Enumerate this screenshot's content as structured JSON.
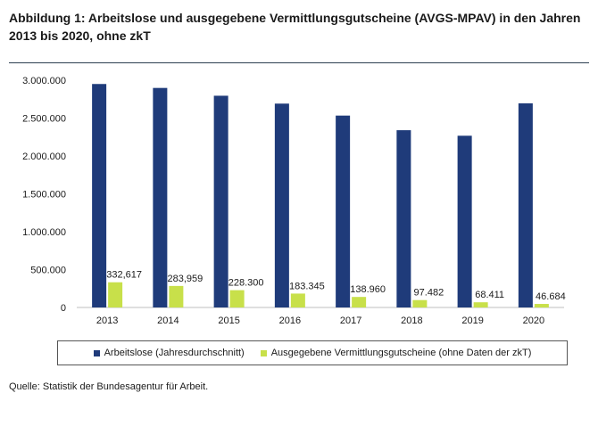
{
  "title": "Abbildung 1: Arbeitslose und ausgegebene Vermittlungsgutscheine (AVGS-MPAV) in den Jahren 2013 bis 2020, ohne zkT",
  "source": "Quelle: Statistik der Bundesagentur für Arbeit.",
  "colors": {
    "series1": "#1f3b7a",
    "series2": "#c8e04a"
  },
  "chart_data": {
    "type": "bar",
    "title": "Abbildung 1: Arbeitslose und ausgegebene Vermittlungsgutscheine (AVGS-MPAV) in den Jahren 2013 bis 2020, ohne zkT",
    "xlabel": "",
    "ylabel": "",
    "categories": [
      "2013",
      "2014",
      "2015",
      "2016",
      "2017",
      "2018",
      "2019",
      "2020"
    ],
    "ylim": [
      0,
      3000000
    ],
    "yticks": [
      0,
      500000,
      1000000,
      1500000,
      2000000,
      2500000,
      3000000
    ],
    "ytick_labels": [
      "0",
      "500.000",
      "1.000.000",
      "1.500.000",
      "2.000.000",
      "2.500.000",
      "3.000.000"
    ],
    "grid": false,
    "legend_position": "bottom",
    "series": [
      {
        "name": "Arbeitslose (Jahresdurchschnitt)",
        "values": [
          2950000,
          2898000,
          2795000,
          2691000,
          2533000,
          2340000,
          2267000,
          2695000
        ],
        "data_labels": []
      },
      {
        "name": "Ausgegebene Vermittlungsgutscheine (ohne Daten der zkT)",
        "values": [
          332617,
          283959,
          228300,
          183345,
          138960,
          97482,
          68411,
          46684
        ],
        "data_labels": [
          "332,617",
          "283,959",
          "228.300",
          "183.345",
          "138.960",
          "97.482",
          "68.411",
          "46.684"
        ]
      }
    ]
  }
}
